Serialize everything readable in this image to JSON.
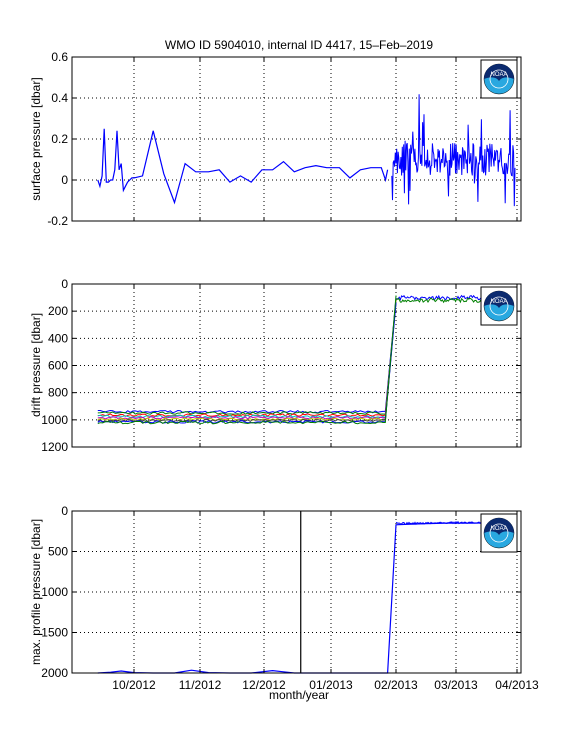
{
  "title": "WMO ID 5904010, internal ID 4417, 15–Feb–2019",
  "xlabel": "month/year",
  "x_ticks": [
    "10/2012",
    "11/2012",
    "12/2012",
    "01/2013",
    "02/2013",
    "03/2013",
    "04/2013"
  ],
  "logo_text": "NOAA",
  "colors": {
    "primary": "#0000ff",
    "secondary": "#008000",
    "grid": "#000000",
    "logo_navy": "#0b2a6f",
    "logo_cyan": "#29a8e0"
  },
  "chart_data": [
    {
      "type": "line",
      "ylabel": "surface pressure [dbar]",
      "ylim": [
        -0.2,
        0.6
      ],
      "y_ticks": [
        "-0.2",
        "0",
        "0.2",
        "0.4",
        "0.6"
      ],
      "grid": true,
      "series": [
        {
          "color": "#0000ff",
          "x": [
            "2012-09-14",
            "2012-09-15",
            "2012-09-16",
            "2012-09-17",
            "2012-09-18",
            "2012-09-19",
            "2012-09-20",
            "2012-09-21",
            "2012-09-22",
            "2012-09-23",
            "2012-09-24",
            "2012-09-25",
            "2012-09-26",
            "2012-09-27",
            "2012-09-28",
            "2012-09-29",
            "2012-09-30",
            "2012-10-01",
            "2012-10-05",
            "2012-10-10",
            "2012-10-15",
            "2012-10-20",
            "2012-10-25",
            "2012-10-30",
            "2012-11-05",
            "2012-11-10",
            "2012-11-15",
            "2012-11-20",
            "2012-11-25",
            "2012-11-30",
            "2012-12-05",
            "2012-12-10",
            "2012-12-15",
            "2012-12-20",
            "2012-12-25",
            "2012-12-30",
            "2013-01-05",
            "2013-01-10",
            "2013-01-15",
            "2013-01-20",
            "2013-01-25",
            "2013-01-27",
            "2013-01-28"
          ],
          "y": [
            0.0,
            -0.03,
            0.02,
            0.25,
            -0.01,
            -0.01,
            0.0,
            0.0,
            0.05,
            0.24,
            0.05,
            0.08,
            -0.05,
            -0.03,
            -0.01,
            0.0,
            0.01,
            0.01,
            0.02,
            0.24,
            0.03,
            -0.11,
            0.08,
            0.04,
            0.04,
            0.05,
            -0.01,
            0.02,
            -0.01,
            0.05,
            0.05,
            0.09,
            0.04,
            0.06,
            0.07,
            0.06,
            0.06,
            0.01,
            0.05,
            0.06,
            0.06,
            0.0,
            0.05
          ]
        }
      ],
      "noisy_segment": {
        "x_start": "2013-01-30",
        "x_end": "2013-03-31",
        "y_min": -0.13,
        "y_max": 0.42,
        "y_typical": 0.1
      }
    },
    {
      "type": "line",
      "ylabel": "drift pressure [dbar]",
      "ylim": [
        1200,
        0
      ],
      "y_ticks": [
        "0",
        "200",
        "400",
        "600",
        "800",
        "1000",
        "1200"
      ],
      "grid": true,
      "reversed": true,
      "levels_before": [
        940,
        950,
        965,
        975,
        985,
        995,
        1005,
        1015,
        1020
      ],
      "levels_after": [
        100,
        120,
        140,
        150
      ],
      "transition": {
        "x_start": "2013-01-28",
        "x_end": "2013-02-01"
      },
      "x_range": [
        "2012-09-14",
        "2013-03-31"
      ]
    },
    {
      "type": "line",
      "ylabel": "max. profile pressure [dbar]",
      "ylim": [
        2000,
        0
      ],
      "y_ticks": [
        "0",
        "500",
        "1000",
        "1500",
        "2000"
      ],
      "grid": true,
      "reversed": true,
      "series": [
        {
          "color": "#0000ff",
          "x": [
            "2012-09-14",
            "2012-09-20",
            "2012-09-25",
            "2012-10-01",
            "2012-10-10",
            "2012-10-20",
            "2012-10-28",
            "2012-11-05",
            "2012-11-15",
            "2012-11-25",
            "2012-12-05",
            "2012-12-10",
            "2012-12-15",
            "2012-12-20",
            "2013-01-01",
            "2013-01-10",
            "2013-01-20",
            "2013-01-28",
            "2013-02-01",
            "2013-02-05",
            "2013-02-15",
            "2013-02-25",
            "2013-03-10",
            "2013-03-20",
            "2013-03-31"
          ],
          "y": [
            2000,
            1990,
            1975,
            1995,
            2000,
            2000,
            1965,
            1995,
            2000,
            2000,
            1970,
            1985,
            2000,
            2000,
            2000,
            2000,
            2000,
            2000,
            170,
            165,
            155,
            150,
            150,
            145,
            140
          ]
        }
      ],
      "spike": {
        "x": "2012-12-18",
        "y_from": 0,
        "y_to": 2000
      }
    }
  ]
}
